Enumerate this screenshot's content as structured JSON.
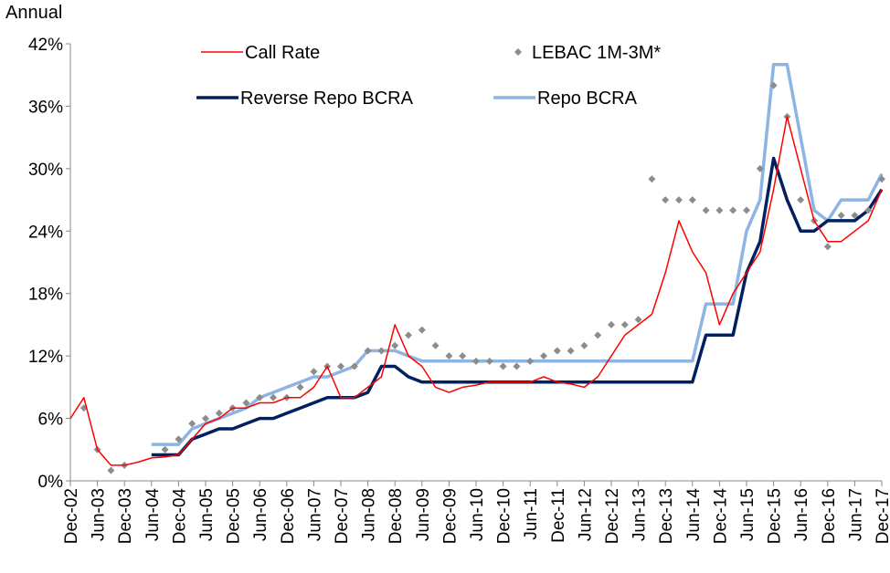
{
  "chart_data": {
    "type": "line",
    "y_label": "Annual",
    "x": [
      "2002-12",
      "2003-03",
      "2003-06",
      "2003-09",
      "2003-12",
      "2004-03",
      "2004-06",
      "2004-09",
      "2004-12",
      "2005-03",
      "2005-06",
      "2005-09",
      "2005-12",
      "2006-03",
      "2006-06",
      "2006-09",
      "2006-12",
      "2007-03",
      "2007-06",
      "2007-09",
      "2007-12",
      "2008-03",
      "2008-06",
      "2008-09",
      "2008-12",
      "2009-03",
      "2009-06",
      "2009-09",
      "2009-12",
      "2010-03",
      "2010-06",
      "2010-09",
      "2010-12",
      "2011-03",
      "2011-06",
      "2011-09",
      "2011-12",
      "2012-03",
      "2012-06",
      "2012-09",
      "2012-12",
      "2013-03",
      "2013-06",
      "2013-09",
      "2013-12",
      "2014-03",
      "2014-06",
      "2014-09",
      "2014-12",
      "2015-03",
      "2015-06",
      "2015-09",
      "2015-12",
      "2016-03",
      "2016-06",
      "2016-09",
      "2016-12",
      "2017-03",
      "2017-06",
      "2017-09",
      "2017-12"
    ],
    "series": [
      {
        "name": "Call Rate",
        "type": "line",
        "color": "#ff0000",
        "width": 1.5,
        "values": [
          6,
          8,
          3,
          1.5,
          1.5,
          1.8,
          2.2,
          2.3,
          2.5,
          4,
          5.5,
          6,
          7,
          7,
          7.5,
          7.5,
          8,
          8,
          9,
          11,
          8,
          8,
          9,
          10,
          15,
          12,
          11,
          9,
          8.5,
          9,
          9.2,
          9.5,
          9.5,
          9.5,
          9.5,
          10,
          9.5,
          9.3,
          9,
          10,
          12,
          14,
          15,
          16,
          20,
          25,
          22,
          20,
          15,
          18,
          20,
          22,
          28,
          35,
          30,
          25,
          23,
          23,
          24,
          25,
          28
        ]
      },
      {
        "name": "LEBAC 1M-3M*",
        "type": "scatter",
        "color": "#8c8c8c",
        "values": [
          null,
          7,
          3,
          1,
          1.5,
          null,
          null,
          3,
          4,
          5.5,
          6,
          6.5,
          7,
          7.5,
          8,
          8,
          8,
          9,
          10.5,
          11,
          11,
          11,
          12.5,
          12.5,
          13,
          14,
          14.5,
          13,
          12,
          12,
          11.5,
          11.5,
          11,
          11,
          11.5,
          12,
          12.5,
          12.5,
          13,
          14,
          15,
          15,
          15.5,
          29,
          27,
          27,
          27,
          26,
          26,
          26,
          26,
          30,
          38,
          35,
          27,
          25,
          22.5,
          25.5,
          25.5,
          26,
          29
        ]
      },
      {
        "name": "Reverse Repo BCRA",
        "type": "line",
        "color": "#002060",
        "width": 3.5,
        "values": [
          null,
          null,
          null,
          null,
          null,
          null,
          2.5,
          2.5,
          2.5,
          4,
          4.5,
          5,
          5,
          5.5,
          6,
          6,
          6.5,
          7,
          7.5,
          8,
          8,
          8,
          8.5,
          11,
          11,
          10,
          9.5,
          9.5,
          9.5,
          9.5,
          9.5,
          9.5,
          9.5,
          9.5,
          9.5,
          9.5,
          9.5,
          9.5,
          9.5,
          9.5,
          9.5,
          9.5,
          9.5,
          9.5,
          9.5,
          9.5,
          9.5,
          14,
          14,
          14,
          20,
          23,
          31,
          27,
          24,
          24,
          25,
          25,
          25,
          26,
          28
        ]
      },
      {
        "name": "Repo BCRA",
        "type": "line",
        "color": "#8db4e2",
        "width": 3.5,
        "values": [
          null,
          null,
          null,
          null,
          null,
          null,
          3.5,
          3.5,
          3.5,
          5,
          5.5,
          6,
          6.5,
          7,
          8,
          8.5,
          9,
          9.5,
          10,
          10,
          10.5,
          11,
          12.5,
          12.5,
          12.5,
          12,
          11.5,
          11.5,
          11.5,
          11.5,
          11.5,
          11.5,
          11.5,
          11.5,
          11.5,
          11.5,
          11.5,
          11.5,
          11.5,
          11.5,
          11.5,
          11.5,
          11.5,
          11.5,
          11.5,
          11.5,
          11.5,
          17,
          17,
          17,
          24,
          27,
          40,
          40,
          33,
          26,
          25,
          27,
          27,
          27,
          29.5
        ]
      }
    ],
    "xlim": [
      "2002-12",
      "2017-12"
    ],
    "xticks": [
      {
        "value": "2002-12",
        "label": "Dec-02"
      },
      {
        "value": "2003-06",
        "label": "Jun-03"
      },
      {
        "value": "2003-12",
        "label": "Dec-03"
      },
      {
        "value": "2004-06",
        "label": "Jun-04"
      },
      {
        "value": "2004-12",
        "label": "Dec-04"
      },
      {
        "value": "2005-06",
        "label": "Jun-05"
      },
      {
        "value": "2005-12",
        "label": "Dec-05"
      },
      {
        "value": "2006-06",
        "label": "Jun-06"
      },
      {
        "value": "2006-12",
        "label": "Dec-06"
      },
      {
        "value": "2007-06",
        "label": "Jun-07"
      },
      {
        "value": "2007-12",
        "label": "Dec-07"
      },
      {
        "value": "2008-06",
        "label": "Jun-08"
      },
      {
        "value": "2008-12",
        "label": "Dec-08"
      },
      {
        "value": "2009-06",
        "label": "Jun-09"
      },
      {
        "value": "2009-12",
        "label": "Dec-09"
      },
      {
        "value": "2010-06",
        "label": "Jun-10"
      },
      {
        "value": "2010-12",
        "label": "Dec-10"
      },
      {
        "value": "2011-06",
        "label": "Jun-11"
      },
      {
        "value": "2011-12",
        "label": "Dec-11"
      },
      {
        "value": "2012-06",
        "label": "Jun-12"
      },
      {
        "value": "2012-12",
        "label": "Dec-12"
      },
      {
        "value": "2013-06",
        "label": "Jun-13"
      },
      {
        "value": "2013-12",
        "label": "Dec-13"
      },
      {
        "value": "2014-06",
        "label": "Jun-14"
      },
      {
        "value": "2014-12",
        "label": "Dec-14"
      },
      {
        "value": "2015-06",
        "label": "Jun-15"
      },
      {
        "value": "2015-12",
        "label": "Dec-15"
      },
      {
        "value": "2016-06",
        "label": "Jun-16"
      },
      {
        "value": "2016-12",
        "label": "Dec-16"
      },
      {
        "value": "2017-06",
        "label": "Jun-17"
      },
      {
        "value": "2017-12",
        "label": "Dec-17"
      }
    ],
    "ylim": [
      0,
      42
    ],
    "yticks": [
      {
        "value": 0,
        "label": "0%"
      },
      {
        "value": 6,
        "label": "6%"
      },
      {
        "value": 12,
        "label": "12%"
      },
      {
        "value": 18,
        "label": "18%"
      },
      {
        "value": 24,
        "label": "24%"
      },
      {
        "value": 30,
        "label": "30%"
      },
      {
        "value": 36,
        "label": "36%"
      },
      {
        "value": 42,
        "label": "42%"
      }
    ],
    "grid": false
  }
}
